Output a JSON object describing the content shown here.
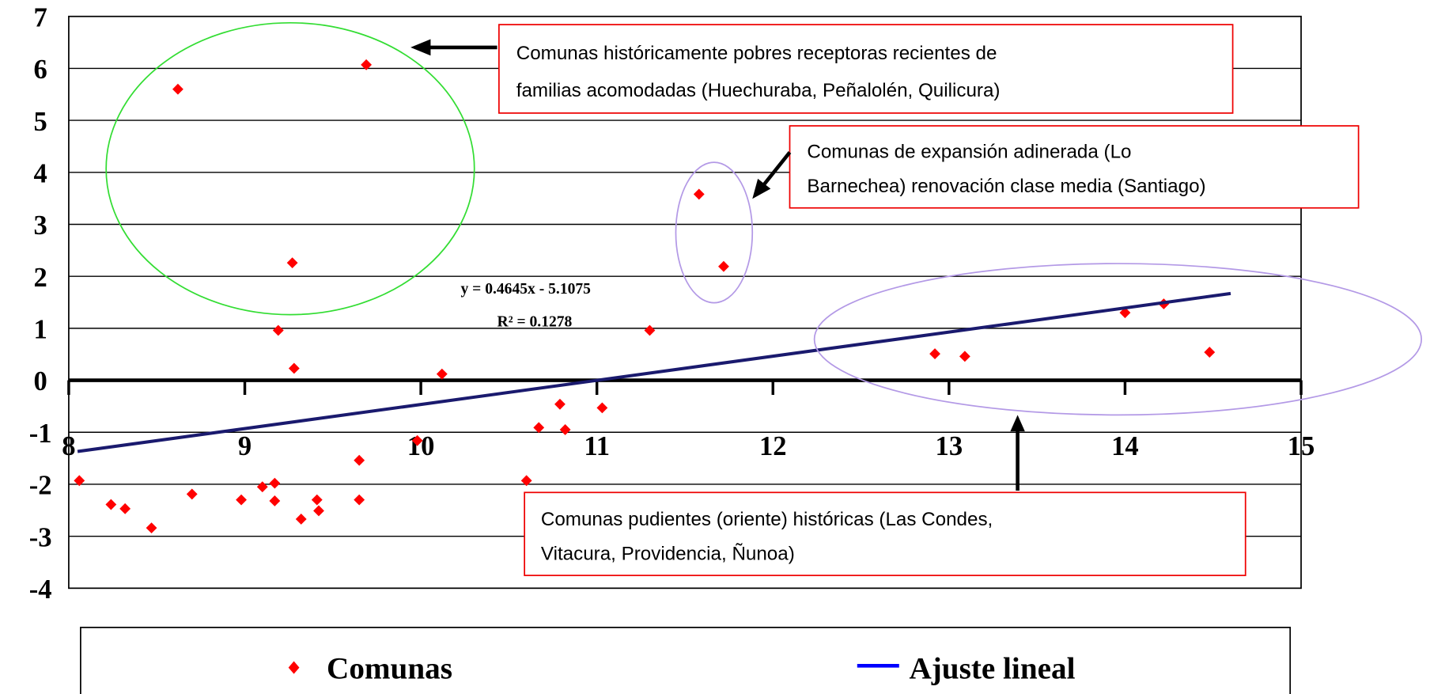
{
  "chart_data": {
    "type": "scatter",
    "xlim": [
      8,
      15
    ],
    "xticks": [
      8,
      9,
      10,
      11,
      12,
      13,
      14,
      15
    ],
    "ylim": [
      -4,
      7
    ],
    "yticks": [
      -4,
      -3,
      -2,
      -1,
      0,
      1,
      2,
      3,
      4,
      5,
      6,
      7
    ],
    "grid": true,
    "legend": "bottom",
    "series": [
      {
        "name": "Comunas",
        "color": "#ff0000",
        "x": [
          8.06,
          8.24,
          8.32,
          8.47,
          8.62,
          8.7,
          8.98,
          9.1,
          9.17,
          9.17,
          9.19,
          9.27,
          9.28,
          9.32,
          9.41,
          9.42,
          9.65,
          9.65,
          9.69,
          9.98,
          10.12,
          10.6,
          10.67,
          10.79,
          10.82,
          11.03,
          11.3,
          11.58,
          11.72,
          12.92,
          13.09,
          14.0,
          14.22,
          14.48
        ],
        "values": [
          -1.93,
          -2.39,
          -2.47,
          -2.84,
          5.6,
          -2.19,
          -2.3,
          -2.05,
          -1.98,
          -2.32,
          0.96,
          2.26,
          0.23,
          -2.67,
          -2.3,
          -2.51,
          -2.3,
          -1.54,
          6.07,
          -1.16,
          0.12,
          -1.93,
          -0.91,
          -0.46,
          -0.95,
          -0.53,
          0.96,
          3.58,
          2.19,
          0.51,
          0.46,
          1.3,
          1.47,
          0.54
        ]
      },
      {
        "name": "Ajuste lineal",
        "color": "#1a1a6e",
        "legend_color": "#0000ff",
        "type": "line",
        "x": [
          8.05,
          14.6
        ],
        "values": [
          -1.37,
          1.67
        ]
      }
    ],
    "equation": [
      "y = 0.4645x - 5.1075",
      "R² = 0.1278"
    ],
    "annotations": [
      {
        "lines": [
          "Comunas históricamente pobres receptoras recientes de",
          "familias acomodadas (Huechuraba, Peñalolén, Quilicura)"
        ]
      },
      {
        "lines": [
          "Comunas de expansión adinerada  (Lo",
          "Barnechea) renovación clase media (Santiago)"
        ]
      },
      {
        "lines": [
          "Comunas pudientes (oriente) históricas (Las Condes,",
          "Vitacura, Providencia, Ñunoa)"
        ]
      }
    ]
  }
}
